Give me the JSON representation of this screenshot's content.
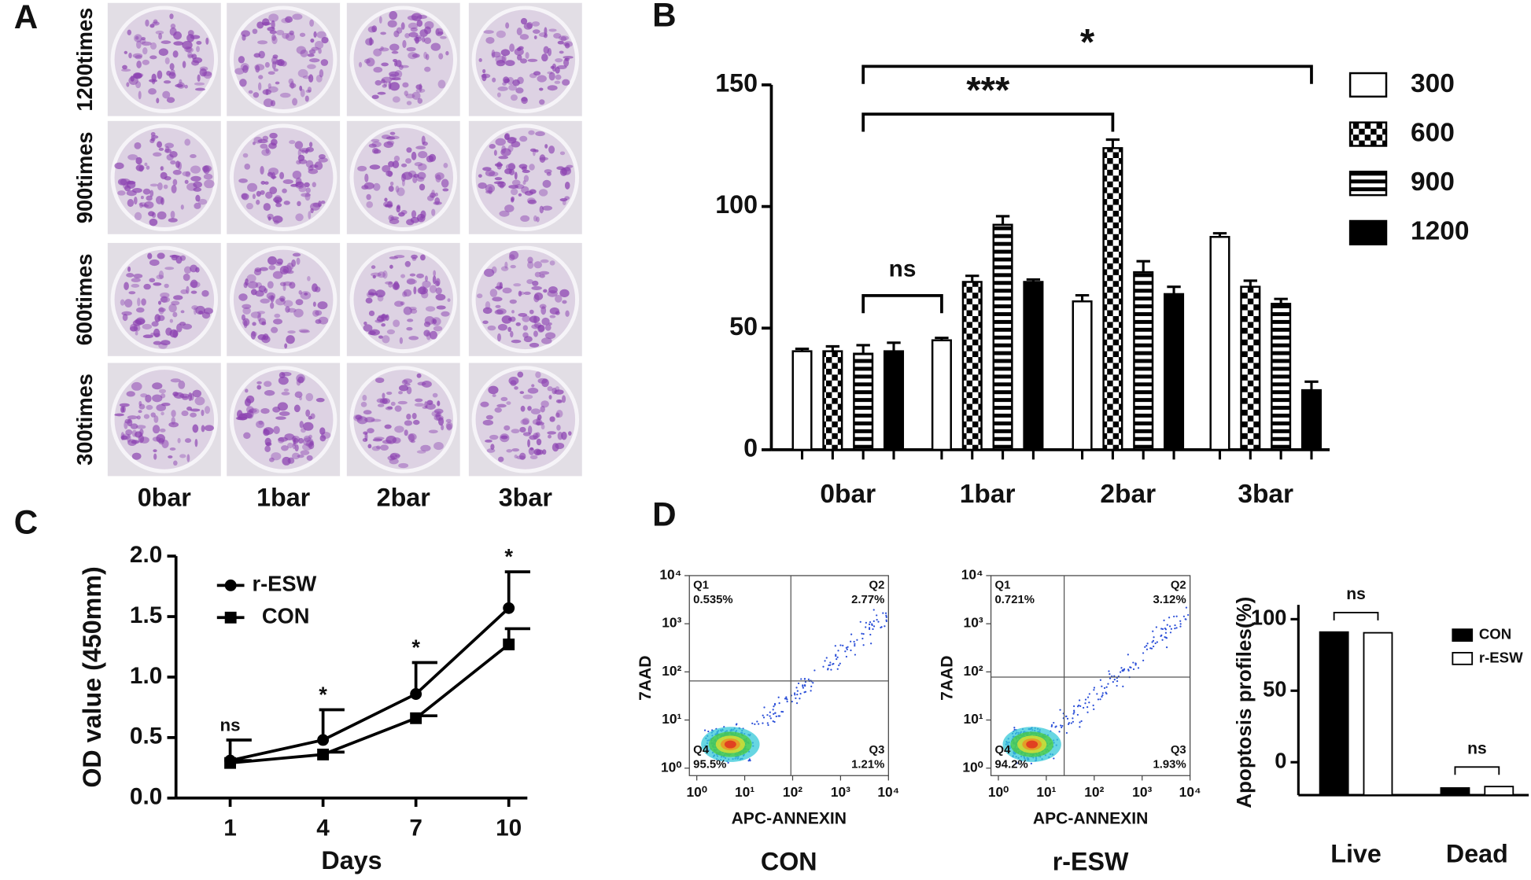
{
  "chart_data": [
    {
      "type": "image-grid",
      "panel": "A",
      "row_labels": [
        "1200times",
        "900times",
        "600times",
        "300times"
      ],
      "column_labels": [
        "0bar",
        "1bar",
        "2bar",
        "3bar"
      ]
    },
    {
      "type": "bar",
      "panel": "B",
      "categories": [
        "0bar",
        "1bar",
        "2bar",
        "3bar"
      ],
      "series": [
        {
          "name": "300",
          "color": "#ffffff",
          "pattern": "solid",
          "values": [
            40.5,
            45,
            61,
            87.5
          ],
          "errors": [
            1,
            1,
            2.5,
            1.5
          ]
        },
        {
          "name": "600",
          "color": "#000000",
          "pattern": "checker",
          "values": [
            40.5,
            69,
            124,
            67
          ],
          "errors": [
            2,
            2.5,
            3.5,
            2.5
          ]
        },
        {
          "name": "900",
          "color": "#000000",
          "pattern": "stripes",
          "values": [
            39.5,
            92.5,
            73,
            60
          ],
          "errors": [
            3.5,
            3.5,
            4.5,
            2
          ]
        },
        {
          "name": "1200",
          "color": "#000000",
          "pattern": "solid",
          "values": [
            40.5,
            69,
            64,
            24.5
          ],
          "errors": [
            3.5,
            1,
            3,
            3.5
          ]
        }
      ],
      "ylim": [
        0,
        150
      ],
      "yticks": [
        0,
        50,
        100,
        150
      ],
      "significance": [
        "ns",
        "***",
        "*"
      ],
      "legend": "top-right"
    },
    {
      "type": "line",
      "panel": "C",
      "x": [
        1,
        4,
        7,
        10
      ],
      "xlim": [
        -0.75,
        10.6
      ],
      "xticks": [
        1,
        4,
        7,
        10
      ],
      "series": [
        {
          "name": "r-ESW",
          "color": "#000000",
          "marker": "circle",
          "values": [
            0.31,
            0.48,
            0.86,
            1.57
          ],
          "errors": [
            0.17,
            0.25,
            0.26,
            0.3
          ]
        },
        {
          "name": "CON",
          "color": "#000000",
          "marker": "square",
          "values": [
            0.29,
            0.36,
            0.66,
            1.27
          ],
          "errors": [
            0.02,
            0.02,
            0.02,
            0.13
          ]
        }
      ],
      "ylim": [
        0,
        2.0
      ],
      "yticks": [
        {
          "value": 0,
          "label": "0.0"
        },
        0.5,
        {
          "value": 1,
          "label": "1.0"
        },
        1.5,
        {
          "value": 2,
          "label": "2.0"
        }
      ],
      "xlabel": "Days",
      "ylabel": "OD value (450mm)",
      "significance": [
        "ns",
        "*",
        "*",
        "*"
      ],
      "legend": "top-left"
    },
    {
      "type": "flow",
      "panel": "D",
      "xlabel": "APC-ANNEXIN",
      "ylabel": "7AAD",
      "log_scale": true,
      "xlim": [
        0.7,
        10000
      ],
      "ylim": [
        0.7,
        10000
      ],
      "xticks": [
        {
          "value": 1,
          "label": "10⁰"
        },
        {
          "value": 10,
          "label": "10¹"
        },
        {
          "value": 100,
          "label": "10²"
        },
        {
          "value": 1000,
          "label": "10³"
        },
        {
          "value": 10000,
          "label": "10⁴"
        }
      ],
      "yticks": [
        {
          "value": 1,
          "label": "10⁰"
        },
        {
          "value": 10,
          "label": "10¹"
        },
        {
          "value": 100,
          "label": "10²"
        },
        {
          "value": 1000,
          "label": "10³"
        },
        {
          "value": 10000,
          "label": "10⁴"
        }
      ],
      "plots": [
        {
          "title": "CON",
          "quadrants": [
            [
              "Q1",
              "0.535%"
            ],
            [
              "Q2",
              "2.77%"
            ],
            [
              "Q3",
              "1.21%"
            ],
            [
              "Q4",
              "95.5%"
            ]
          ]
        },
        {
          "title": "r-ESW",
          "quadrants": [
            [
              "Q1",
              "0.721%"
            ],
            [
              "Q2",
              "3.12%"
            ],
            [
              "Q3",
              "1.93%"
            ],
            [
              "Q4",
              "94.2%"
            ]
          ]
        }
      ]
    },
    {
      "type": "bar",
      "categories": [
        "Live",
        "Dead"
      ],
      "series": [
        {
          "name": "CON",
          "color": "#000000",
          "values": [
            91,
            -18
          ]
        },
        {
          "name": "r-ESW",
          "color": "#ffffff",
          "values": [
            90.5,
            -17
          ]
        }
      ],
      "ylim": [
        -23,
        110
      ],
      "yticks": [
        0,
        50,
        100
      ],
      "ylabel": "Apoptosis profiles(%)",
      "significance": [
        "ns",
        "ns"
      ],
      "legend": "top-right"
    }
  ]
}
